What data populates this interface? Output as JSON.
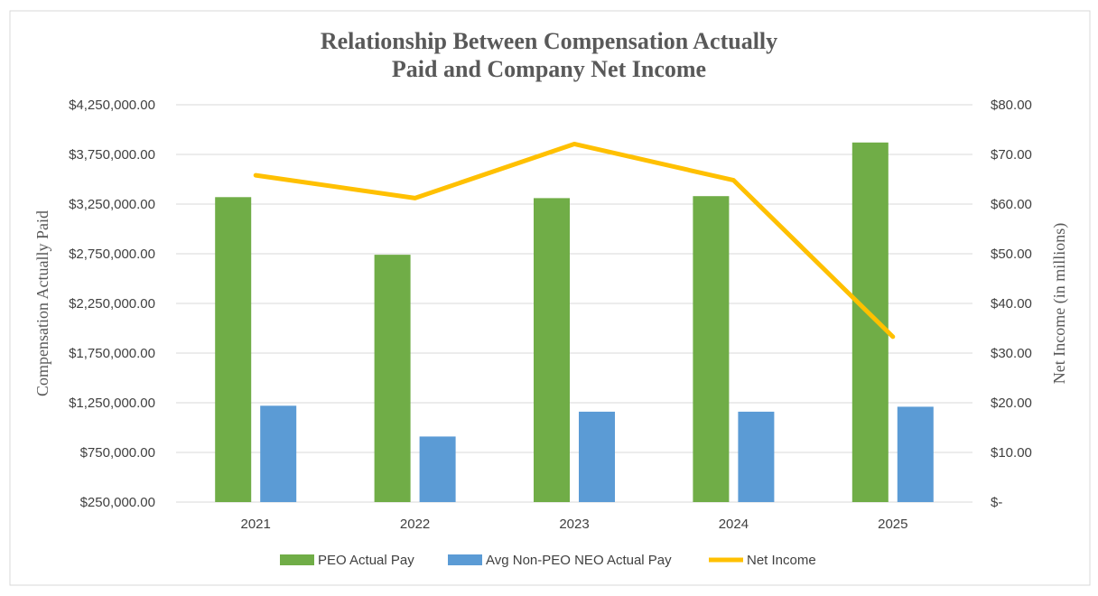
{
  "chart_data": {
    "type": "bar",
    "title": [
      "Relationship Between Compensation Actually",
      "Paid and Company Net Income"
    ],
    "categories": [
      "2021",
      "2022",
      "2023",
      "2024",
      "2025"
    ],
    "ylabel": "Compensation Actually Paid",
    "y2label": "Net Income (in millions)",
    "ylim": [
      250000,
      4250000
    ],
    "y2lim": [
      0,
      80
    ],
    "yticks": [
      "$250,000.00",
      "$750,000.00",
      "$1,250,000.00",
      "$1,750,000.00",
      "$2,250,000.00",
      "$2,750,000.00",
      "$3,250,000.00",
      "$3,750,000.00",
      "$4,250,000.00"
    ],
    "y2ticks": [
      "$-",
      "$10.00",
      "$20.00",
      "$30.00",
      "$40.00",
      "$50.00",
      "$60.00",
      "$70.00",
      "$80.00"
    ],
    "grid": true,
    "legend_position": "bottom",
    "series": [
      {
        "name": "PEO Actual Pay",
        "type": "bar",
        "axis": "left",
        "color": "#70ad47",
        "values": [
          3320000,
          2740000,
          3310000,
          3330000,
          3870000
        ]
      },
      {
        "name": "Avg Non-PEO NEO Actual Pay",
        "type": "bar",
        "axis": "left",
        "color": "#5b9bd5",
        "values": [
          1220000,
          910000,
          1160000,
          1160000,
          1210000
        ]
      },
      {
        "name": "Net Income",
        "type": "line",
        "axis": "right",
        "color": "#ffc000",
        "values": [
          65.8,
          61.2,
          72.1,
          64.8,
          33.3
        ]
      }
    ]
  }
}
